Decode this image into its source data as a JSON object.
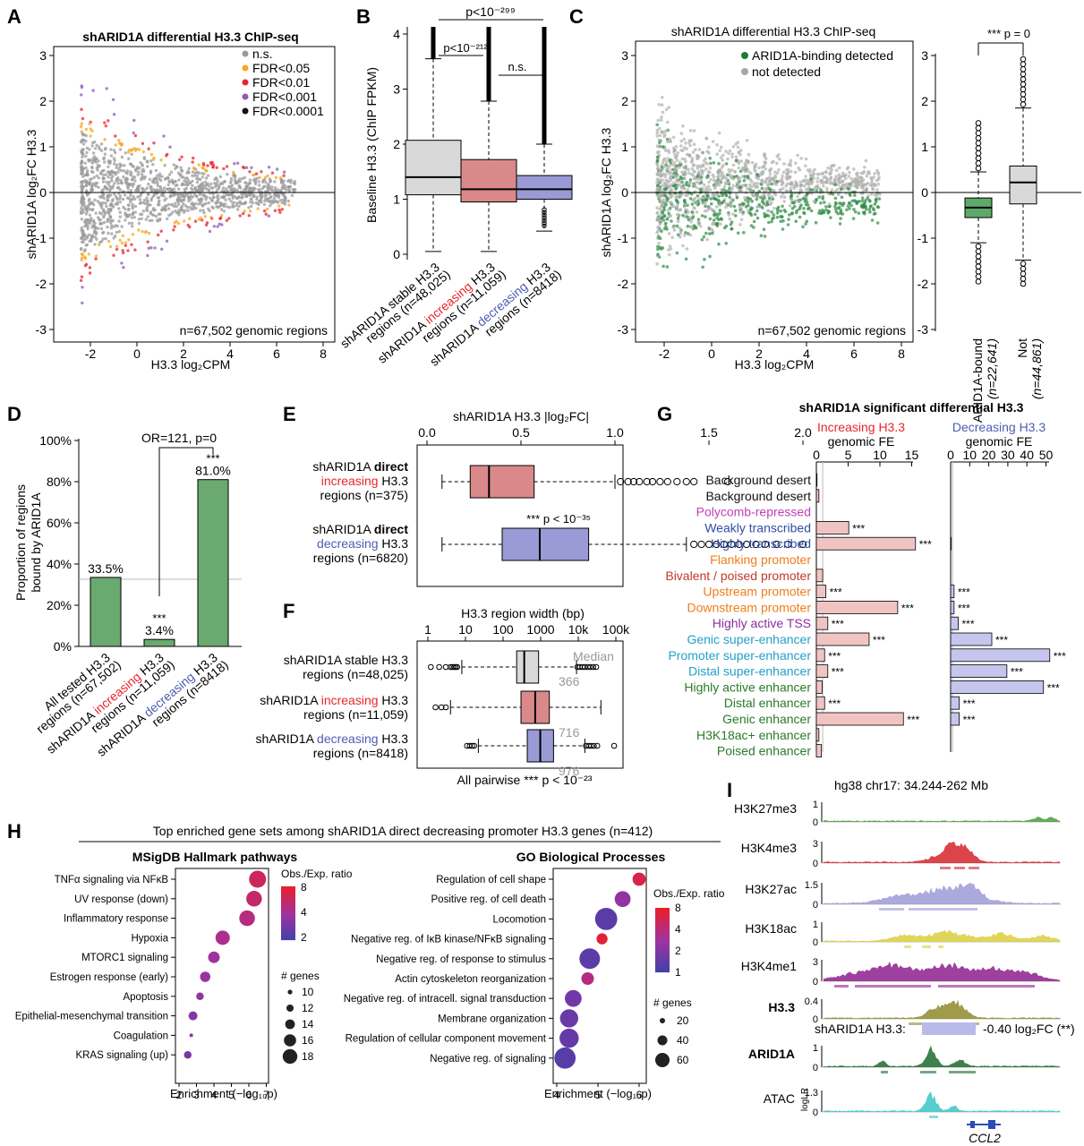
{
  "panels": {
    "A": {
      "letter": "A",
      "title": "shARID1A differential H3.3 ChIP-seq",
      "ylabel": "shARID1A log₂FC H3.3",
      "xlabel": "H3.3 log₂CPM",
      "xticks": [
        "-2",
        "0",
        "2",
        "4",
        "6",
        "8"
      ],
      "yticks": [
        "3",
        "2",
        "1",
        "0",
        "-1",
        "-2",
        "-3"
      ],
      "legend": [
        {
          "label": "n.s.",
          "color": "#999999"
        },
        {
          "label": "FDR<0.05",
          "color": "#f5a623"
        },
        {
          "label": "FDR<0.01",
          "color": "#e8262b"
        },
        {
          "label": "FDR<0.001",
          "color": "#8e5bb5"
        },
        {
          "label": "FDR<0.0001",
          "color": "#111111"
        }
      ],
      "note": "n=67,502 genomic regions"
    },
    "B": {
      "letter": "B",
      "ylabel": "Baseline H3.3 (ChIP FPKM)",
      "yticks": [
        "4",
        "3",
        "2",
        "1",
        "0"
      ],
      "pvals": [
        "p<10⁻²⁹⁹",
        "p<10⁻²¹²",
        "n.s."
      ],
      "categories": [
        {
          "line1": "shARID1A stable H3.3",
          "line2": "regions (n=48,025)",
          "color": "#d9d9d9",
          "accent": ""
        },
        {
          "line1": "shARID1A increasing H3.3",
          "line2": "regions (n=11,059)",
          "color": "#d9898a",
          "accent": "increasing"
        },
        {
          "line1": "shARID1A decreasing H3.3",
          "line2": "regions (n=8418)",
          "color": "#9a9ad6",
          "accent": "decreasing"
        }
      ]
    },
    "C": {
      "letter": "C",
      "title": "shARID1A differential H3.3 ChIP-seq",
      "ylabel": "shARID1A log₂FC H3.3",
      "xlabel": "H3.3 log₂CPM",
      "legend": [
        {
          "label": "ARID1A-binding detected",
          "color": "#1e7a34"
        },
        {
          "label": "not detected",
          "color": "#a6a6a6"
        }
      ],
      "note": "n=67,502 genomic regions",
      "right_pval": "*** p = 0",
      "right_cats": [
        {
          "line1": "ARID1A-bound",
          "line2": "(n=22,641)"
        },
        {
          "line1": "Not",
          "line2": "(n=44,861)"
        }
      ]
    },
    "D": {
      "letter": "D",
      "ylabel1": "Proportion of regions",
      "ylabel2": "bound by ARID1A",
      "yticks": [
        "100%",
        "80%",
        "60%",
        "40%",
        "20%",
        "0%"
      ],
      "or_label": "OR=121, p=0",
      "bars": [
        {
          "label": "33.5%",
          "star": "",
          "line1": "All tested H3.3",
          "line2": "regions (n=67,502)"
        },
        {
          "label": "3.4%",
          "star": "***",
          "line1": "shARID1A increasing H3.3",
          "line2": "regions (n=11,059)"
        },
        {
          "label": "81.0%",
          "star": "***",
          "line1": "shARID1A decreasing H3.3",
          "line2": "regions (n=8418)"
        }
      ]
    },
    "E": {
      "letter": "E",
      "axis_title": "shARID1A H3.3 |log₂FC|",
      "xticks": [
        "0.0",
        "0.5",
        "1.0",
        "1.5",
        "2.0"
      ],
      "pval": "*** p < 10⁻³⁵",
      "rows": [
        {
          "l1": "shARID1A direct",
          "l2": "increasing H3.3",
          "l3": "regions (n=375)"
        },
        {
          "l1": "shARID1A direct",
          "l2": "decreasing H3.3",
          "l3": "regions (n=6820)"
        }
      ]
    },
    "F": {
      "letter": "F",
      "axis_title": "H3.3 region width (bp)",
      "xticks": [
        "1",
        "10",
        "100",
        "1000",
        "10k",
        "100k"
      ],
      "bottom": "All pairwise *** p < 10⁻²³",
      "median_label": "Median",
      "rows": [
        {
          "l1": "shARID1A stable H3.3",
          "l2": "regions (n=48,025)",
          "median": "366"
        },
        {
          "l1": "shARID1A increasing H3.3",
          "l2": "regions (n=11,059)",
          "median": "716"
        },
        {
          "l1": "shARID1A decreasing H3.3",
          "l2": "regions (n=8418)",
          "median": "976"
        }
      ]
    },
    "G": {
      "letter": "G",
      "title": "shARID1A significant differential H3.3",
      "inc_head1": "Increasing H3.3",
      "inc_head2": "genomic FE",
      "dec_head1": "Decreasing H3.3",
      "dec_head2": "genomic FE",
      "inc_ticks": [
        "0",
        "5",
        "10",
        "15"
      ],
      "dec_ticks": [
        "0",
        "10",
        "20",
        "30",
        "40",
        "50"
      ],
      "rows": [
        {
          "label": "Background desert",
          "color": "#111111",
          "inc": 0.1,
          "dec": 0,
          "inc_sig": "",
          "dec_sig": ""
        },
        {
          "label": "Background desert",
          "color": "#111111",
          "inc": 0.4,
          "dec": 0,
          "inc_sig": "",
          "dec_sig": ""
        },
        {
          "label": "Polycomb-repressed",
          "color": "#c13fb7",
          "inc": 0,
          "dec": 0,
          "inc_sig": "",
          "dec_sig": ""
        },
        {
          "label": "Weakly transcribed",
          "color": "#2f4ea8",
          "inc": 5.1,
          "dec": 0,
          "inc_sig": "***",
          "dec_sig": ""
        },
        {
          "label": "Highly transcribed",
          "color": "#2f4ea8",
          "inc": 15.6,
          "dec": 0.3,
          "inc_sig": "***",
          "dec_sig": ""
        },
        {
          "label": "Flanking promoter",
          "color": "#f07d1a",
          "inc": 0,
          "dec": 0,
          "inc_sig": "",
          "dec_sig": ""
        },
        {
          "label": "Bivalent / poised promoter",
          "color": "#c1392b",
          "inc": 1.0,
          "dec": 0,
          "inc_sig": "",
          "dec_sig": ""
        },
        {
          "label": "Upstream promoter",
          "color": "#f07d1a",
          "inc": 1.5,
          "dec": 1.8,
          "inc_sig": "***",
          "dec_sig": "***"
        },
        {
          "label": "Downstream promoter",
          "color": "#f07d1a",
          "inc": 12.8,
          "dec": 1.8,
          "inc_sig": "***",
          "dec_sig": "***"
        },
        {
          "label": "Highly active TSS",
          "color": "#8a2c9e",
          "inc": 1.8,
          "dec": 4.0,
          "inc_sig": "***",
          "dec_sig": "***"
        },
        {
          "label": "Genic super-enhancer",
          "color": "#23a0c8",
          "inc": 8.3,
          "dec": 21.6,
          "inc_sig": "***",
          "dec_sig": "***"
        },
        {
          "label": "Promoter super-enhancer",
          "color": "#23a0c8",
          "inc": 1.3,
          "dec": 52.0,
          "inc_sig": "***",
          "dec_sig": "***"
        },
        {
          "label": "Distal super-enhancer",
          "color": "#23a0c8",
          "inc": 1.8,
          "dec": 29.5,
          "inc_sig": "***",
          "dec_sig": "***"
        },
        {
          "label": "Highly active enhancer",
          "color": "#2a7a2a",
          "inc": 0.9,
          "dec": 48.7,
          "inc_sig": "",
          "dec_sig": "***"
        },
        {
          "label": "Distal enhancer",
          "color": "#2a7a2a",
          "inc": 1.3,
          "dec": 4.5,
          "inc_sig": "***",
          "dec_sig": "***"
        },
        {
          "label": "Genic enhancer",
          "color": "#2a7a2a",
          "inc": 13.7,
          "dec": 4.5,
          "inc_sig": "***",
          "dec_sig": "***"
        },
        {
          "label": "H3K18ac+ enhancer",
          "color": "#2a7a2a",
          "inc": 0.4,
          "dec": 0,
          "inc_sig": "",
          "dec_sig": ""
        },
        {
          "label": "Poised enhancer",
          "color": "#2a7a2a",
          "inc": 0.8,
          "dec": 0,
          "inc_sig": "",
          "dec_sig": ""
        }
      ]
    },
    "H": {
      "letter": "H",
      "title": "Top enriched gene sets among shARID1A direct decreasing promoter H3.3 genes (n=412)",
      "left_title": "MSigDB Hallmark pathways",
      "right_title": "GO Biological Processes",
      "xlabel": "Enrichment (−log₁₀p)",
      "cb_title": "Obs./Exp. ratio",
      "genes_title": "# genes",
      "left_xticks": [
        "2",
        "3",
        "4",
        "5",
        "6",
        "7"
      ],
      "right_xticks": [
        "4",
        "5",
        "6"
      ],
      "left_cb_ticks": [
        "8",
        "4",
        "2"
      ],
      "right_cb_ticks": [
        "8",
        "4",
        "2",
        "1"
      ],
      "left_sizes": [
        "10",
        "12",
        "14",
        "16",
        "18"
      ],
      "right_sizes": [
        "20",
        "40",
        "60"
      ],
      "left": [
        {
          "label": "TNFα signaling via NFκB",
          "x": 6.5,
          "size": 18,
          "ratio": 6.5
        },
        {
          "label": "UV response (down)",
          "x": 6.3,
          "size": 17,
          "ratio": 6.2
        },
        {
          "label": "Inflammatory response",
          "x": 5.9,
          "size": 17,
          "ratio": 5.5
        },
        {
          "label": "Hypoxia",
          "x": 4.5,
          "size": 16,
          "ratio": 5.0
        },
        {
          "label": "MTORC1 signaling",
          "x": 4.0,
          "size": 14,
          "ratio": 4.5
        },
        {
          "label": "Estrogen response (early)",
          "x": 3.5,
          "size": 13,
          "ratio": 4.2
        },
        {
          "label": "Apoptosis",
          "x": 3.2,
          "size": 11,
          "ratio": 4.0
        },
        {
          "label": "Epithelial-mesenchymal transition",
          "x": 2.8,
          "size": 12,
          "ratio": 3.6
        },
        {
          "label": "Coagulation",
          "x": 2.7,
          "size": 8,
          "ratio": 3.8
        },
        {
          "label": "KRAS signaling (up)",
          "x": 2.5,
          "size": 11,
          "ratio": 3.0
        }
      ],
      "right": [
        {
          "label": "Regulation of cell shape",
          "x": 6.0,
          "size": 14,
          "ratio": 7.0
        },
        {
          "label": "Positive reg. of cell death",
          "x": 5.6,
          "size": 24,
          "ratio": 4.0
        },
        {
          "label": "Locomotion",
          "x": 5.2,
          "size": 58,
          "ratio": 2.0
        },
        {
          "label": "Negative reg. of IκB kinase/NFκB signaling",
          "x": 5.1,
          "size": 8,
          "ratio": 7.5
        },
        {
          "label": "Negative reg. of response to stimulus",
          "x": 4.8,
          "size": 48,
          "ratio": 2.0
        },
        {
          "label": "Actin cytoskeleton reorganization",
          "x": 4.75,
          "size": 12,
          "ratio": 5.5
        },
        {
          "label": "Negative reg. of intracell. signal transduction",
          "x": 4.4,
          "size": 28,
          "ratio": 2.8
        },
        {
          "label": "Membrane organization",
          "x": 4.3,
          "size": 35,
          "ratio": 2.5
        },
        {
          "label": "Regulation of cellular component movement",
          "x": 4.3,
          "size": 40,
          "ratio": 2.4
        },
        {
          "label": "Negative reg. of signaling",
          "x": 4.2,
          "size": 52,
          "ratio": 1.8
        }
      ]
    },
    "I": {
      "letter": "I",
      "locus": "hg38 chr17: 34.244-262 Mb",
      "ylabel": "logLR",
      "fc_label": "shARID1A H3.3:",
      "fc_value": "-0.40 log₂FC (**)",
      "gene": "CCL2",
      "tracks": [
        {
          "name": "H3K27me3",
          "max": "1",
          "color": "#4b9a3a",
          "bold": false
        },
        {
          "name": "H3K4me3",
          "max": "3",
          "color": "#d7232a",
          "bold": false
        },
        {
          "name": "H3K27ac",
          "max": "1.5",
          "color": "#9d9ad6",
          "bold": false
        },
        {
          "name": "H3K18ac",
          "max": "1",
          "color": "#d9cf3d",
          "bold": false
        },
        {
          "name": "H3K4me1",
          "max": "3",
          "color": "#8d1e8d",
          "bold": false
        },
        {
          "name": "H3.3",
          "max": "0.4",
          "color": "#8f8a2a",
          "bold": true
        },
        {
          "name": "ARID1A",
          "max": "1",
          "color": "#1d6b2d",
          "bold": true
        },
        {
          "name": "ATAC",
          "max": "1.3",
          "color": "#3cc4c4",
          "bold": false
        }
      ]
    }
  }
}
